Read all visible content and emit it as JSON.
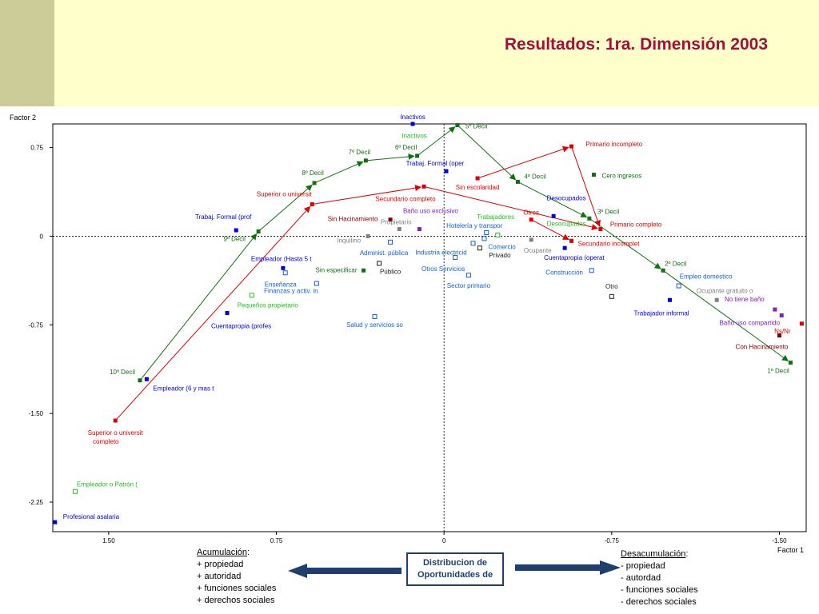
{
  "slide": {
    "title": "Resultados: 1ra. Dimensión 2003",
    "left_note": {
      "heading": "Acumulación",
      "colon": ":",
      "items": [
        "+  propiedad",
        "+  autoridad",
        "+  funciones sociales",
        "+  derechos sociales"
      ]
    },
    "right_note": {
      "heading": "Desacumulación",
      "colon": ":",
      "items": [
        "-  propiedad",
        "-  autordad",
        "-  funciones sociales",
        "-  derechos sociales"
      ]
    },
    "center_box": [
      "Distribucion de",
      "Oportunidades de"
    ]
  },
  "chart_data": {
    "type": "scatter",
    "xlabel": "Factor 1",
    "ylabel": "Factor 2",
    "x_axis_reversed": true,
    "xlim": [
      1.75,
      -1.62
    ],
    "ylim": [
      -2.5,
      0.95
    ],
    "xticks": [
      {
        "v": 1.5,
        "label": "1.50"
      },
      {
        "v": 0.75,
        "label": "0.75"
      },
      {
        "v": 0,
        "label": "0"
      },
      {
        "v": -0.75,
        "label": "-0.75"
      },
      {
        "v": -1.5,
        "label": "-1.50"
      }
    ],
    "yticks": [
      {
        "v": 0.75,
        "label": "0.75"
      },
      {
        "v": 0,
        "label": "0"
      },
      {
        "v": -0.75,
        "label": "-0.75"
      },
      {
        "v": -1.5,
        "label": "-1.50"
      },
      {
        "v": -2.25,
        "label": "-2.25"
      }
    ],
    "reference_lines": {
      "x": 0,
      "y": 0,
      "style": "dotted"
    },
    "colors": {
      "decil": "#107010",
      "educ": "#e00000",
      "trabajo": "#0000e0",
      "sector": "#1060e0",
      "vivienda": "#800000",
      "servicio": "#8020c0",
      "gris": "#808080",
      "negro": "#202020",
      "verde_claro": "#20c020"
    },
    "points": [
      {
        "label": "Inactivos",
        "x": 0.14,
        "y": 0.95,
        "group": "trabajo",
        "marker": "filled",
        "lx": 0,
        "ly": -6,
        "anchor": "middle"
      },
      {
        "label": "Inactivos",
        "x": 0.14,
        "y": 0.86,
        "group": "verde_claro",
        "marker": "none",
        "lx": 2,
        "ly": 4,
        "anchor": "middle"
      },
      {
        "label": "5º Decil",
        "x": -0.06,
        "y": 0.94,
        "group": "decil",
        "marker": "filled",
        "lx": 10,
        "ly": 4,
        "anchor": "start"
      },
      {
        "label": "6º Decil",
        "x": 0.12,
        "y": 0.68,
        "group": "decil",
        "marker": "filled",
        "lx": -14,
        "ly": -8,
        "anchor": "middle"
      },
      {
        "label": "7º Decil",
        "x": 0.35,
        "y": 0.64,
        "group": "decil",
        "marker": "filled",
        "lx": -8,
        "ly": -8,
        "anchor": "middle"
      },
      {
        "label": "8º Decil",
        "x": 0.58,
        "y": 0.45,
        "group": "decil",
        "marker": "filled",
        "lx": -2,
        "ly": -10,
        "anchor": "middle"
      },
      {
        "label": "9º Decil",
        "x": 0.83,
        "y": 0.04,
        "group": "decil",
        "marker": "filled",
        "lx": -30,
        "ly": 12,
        "anchor": "middle"
      },
      {
        "label": "10º Decil",
        "x": 1.36,
        "y": -1.22,
        "group": "decil",
        "marker": "filled",
        "lx": -22,
        "ly": -8,
        "anchor": "middle"
      },
      {
        "label": "4º Decil",
        "x": -0.33,
        "y": 0.46,
        "group": "decil",
        "marker": "filled",
        "lx": 8,
        "ly": -4,
        "anchor": "start"
      },
      {
        "label": "3º Decil",
        "x": -0.65,
        "y": 0.15,
        "group": "decil",
        "marker": "filled",
        "lx": 10,
        "ly": -6,
        "anchor": "start"
      },
      {
        "label": "2º Decil",
        "x": -0.98,
        "y": -0.29,
        "group": "decil",
        "marker": "filled",
        "lx": 2,
        "ly": -6,
        "anchor": "start"
      },
      {
        "label": "1º Decil",
        "x": -1.55,
        "y": -1.07,
        "group": "decil",
        "marker": "filled",
        "lx": -29,
        "ly": 13,
        "anchor": "start"
      },
      {
        "label": "Cero ingresos",
        "x": -0.67,
        "y": 0.52,
        "group": "decil",
        "marker": "filled",
        "lx": 10,
        "ly": 4,
        "anchor": "start"
      },
      {
        "label": "Superior o universit",
        "x": 0.59,
        "y": 0.27,
        "group": "educ",
        "marker": "filled",
        "lx": -35,
        "ly": -10,
        "anchor": "middle"
      },
      {
        "label": "Secundario completo",
        "x": 0.09,
        "y": 0.42,
        "group": "educ",
        "marker": "filled",
        "lx": -23,
        "ly": 18,
        "anchor": "middle"
      },
      {
        "label": "Primario incompleto",
        "x": -0.57,
        "y": 0.76,
        "group": "educ",
        "marker": "filled",
        "lx": 18,
        "ly": 0,
        "anchor": "start"
      },
      {
        "label": "Sin escolaridad",
        "x": -0.15,
        "y": 0.49,
        "group": "educ",
        "marker": "filled",
        "lx": 0,
        "ly": 14,
        "anchor": "middle"
      },
      {
        "label": "Primario completo",
        "x": -0.7,
        "y": 0.06,
        "group": "educ",
        "marker": "filled",
        "lx": 12,
        "ly": -3,
        "anchor": "start"
      },
      {
        "label": "Secundario incomplet",
        "x": -0.57,
        "y": -0.04,
        "group": "educ",
        "marker": "filled",
        "lx": 8,
        "ly": 6,
        "anchor": "start"
      },
      {
        "label": "Otros",
        "x": -0.39,
        "y": 0.14,
        "group": "educ",
        "marker": "filled",
        "lx": 0,
        "ly": -6,
        "anchor": "middle"
      },
      {
        "label": "Superior o universit",
        "x": 1.47,
        "y": -1.56,
        "group": "educ",
        "marker": "filled",
        "lx": 0,
        "ly": 18,
        "anchor": "middle"
      },
      {
        "label": "completo",
        "x": 1.47,
        "y": -1.56,
        "group": "educ",
        "marker": "none",
        "lx": -12,
        "ly": 29,
        "anchor": "middle"
      },
      {
        "label": "Ns/Nr",
        "x": -1.6,
        "y": -0.74,
        "group": "educ",
        "marker": "filled",
        "lx": -24,
        "ly": 12,
        "anchor": "middle"
      },
      {
        "label": "Trabaj. Formal (prof",
        "x": 0.93,
        "y": 0.05,
        "group": "trabajo",
        "marker": "filled",
        "lx": -16,
        "ly": -14,
        "anchor": "middle"
      },
      {
        "label": "Trabaj. Formal (oper",
        "x": -0.01,
        "y": 0.55,
        "group": "trabajo",
        "marker": "filled",
        "lx": -14,
        "ly": -7,
        "anchor": "middle"
      },
      {
        "label": "Empleador (Hasta 5 t",
        "x": 0.72,
        "y": -0.27,
        "group": "trabajo",
        "marker": "filled",
        "lx": -40,
        "ly": -9,
        "anchor": "start"
      },
      {
        "label": "Cuentapropia (profes",
        "x": 0.97,
        "y": -0.65,
        "group": "trabajo",
        "marker": "filled",
        "lx": -20,
        "ly": 19,
        "anchor": "start"
      },
      {
        "label": "Empleador (6 y mas t",
        "x": 1.33,
        "y": -1.21,
        "group": "trabajo",
        "marker": "filled",
        "lx": 8,
        "ly": 14,
        "anchor": "start"
      },
      {
        "label": "Profesional asalaria",
        "x": 1.74,
        "y": -2.42,
        "group": "trabajo",
        "marker": "filled",
        "lx": 10,
        "ly": -4,
        "anchor": "start"
      },
      {
        "label": "Desocupados",
        "x": -0.49,
        "y": 0.17,
        "group": "trabajo",
        "marker": "filled",
        "lx": 16,
        "ly": -20,
        "anchor": "middle"
      },
      {
        "label": "Desocupados",
        "x": -0.49,
        "y": 0.17,
        "group": "verde_claro",
        "marker": "none",
        "lx": 16,
        "ly": 12,
        "anchor": "middle"
      },
      {
        "label": "Cuentapropia (operat",
        "x": -0.54,
        "y": -0.1,
        "group": "trabajo",
        "marker": "filled",
        "lx": -26,
        "ly": 15,
        "anchor": "start"
      },
      {
        "label": "Trabajador informal",
        "x": -1.01,
        "y": -0.54,
        "group": "trabajo",
        "marker": "filled",
        "lx": -45,
        "ly": 19,
        "anchor": "start"
      },
      {
        "label": "Trabajadores",
        "x": -0.24,
        "y": 0.01,
        "group": "verde_claro",
        "marker": "open",
        "lx": -26,
        "ly": -20,
        "anchor": "start"
      },
      {
        "label": "Hotelería y transpor",
        "x": -0.19,
        "y": 0.03,
        "group": "sector",
        "marker": "open",
        "lx": -15,
        "ly": -6,
        "anchor": "middle"
      },
      {
        "label": "Comercio",
        "x": -0.18,
        "y": -0.02,
        "group": "sector",
        "marker": "open",
        "lx": 5,
        "ly": 13,
        "anchor": "start"
      },
      {
        "label": "Industria electricid",
        "x": -0.13,
        "y": -0.06,
        "group": "sector",
        "marker": "open",
        "lx": -40,
        "ly": 14,
        "anchor": "middle"
      },
      {
        "label": "Administ. pública",
        "x": 0.24,
        "y": -0.05,
        "group": "sector",
        "marker": "open",
        "lx": -8,
        "ly": 16,
        "anchor": "middle"
      },
      {
        "label": "Otros Servicios",
        "x": -0.05,
        "y": -0.18,
        "group": "sector",
        "marker": "open",
        "lx": -15,
        "ly": 17,
        "anchor": "middle"
      },
      {
        "label": "Sector primario",
        "x": -0.11,
        "y": -0.33,
        "group": "sector",
        "marker": "open",
        "lx": 0,
        "ly": 16,
        "anchor": "middle"
      },
      {
        "label": "Construcción",
        "x": -0.66,
        "y": -0.29,
        "group": "sector",
        "marker": "open",
        "lx": -34,
        "ly": 5,
        "anchor": "middle"
      },
      {
        "label": "Empleo doméstico",
        "x": -1.05,
        "y": -0.42,
        "group": "sector",
        "marker": "open",
        "lx": 34,
        "ly": -9,
        "anchor": "middle"
      },
      {
        "label": "Enseñanza",
        "x": 0.71,
        "y": -0.31,
        "group": "sector",
        "marker": "open",
        "lx": -6,
        "ly": 17,
        "anchor": "middle"
      },
      {
        "label": "Finanzas y activ. in",
        "x": 0.57,
        "y": -0.4,
        "group": "sector",
        "marker": "open",
        "lx": -32,
        "ly": 12,
        "anchor": "middle"
      },
      {
        "label": "Salud y servicios so",
        "x": 0.31,
        "y": -0.68,
        "group": "sector",
        "marker": "open",
        "lx": 0,
        "ly": 13,
        "anchor": "middle"
      },
      {
        "label": "Pequeños propietario",
        "x": 0.86,
        "y": -0.5,
        "group": "verde_claro",
        "marker": "open",
        "lx": 20,
        "ly": 15,
        "anchor": "middle"
      },
      {
        "label": "Empleador o Patrón (",
        "x": 1.65,
        "y": -2.16,
        "group": "verde_claro",
        "marker": "open",
        "lx": 40,
        "ly": -6,
        "anchor": "middle"
      },
      {
        "label": "Sin Hacinamiento",
        "x": 0.24,
        "y": 0.14,
        "group": "vivienda",
        "marker": "filled",
        "lx": -47,
        "ly": 2,
        "anchor": "middle"
      },
      {
        "label": "Con Hacinamiento",
        "x": -1.5,
        "y": -0.84,
        "group": "vivienda",
        "marker": "filled",
        "lx": -22,
        "ly": 17,
        "anchor": "middle"
      },
      {
        "label": "Baño uso exclusivo",
        "x": 0.11,
        "y": 0.06,
        "group": "servicio",
        "marker": "filled",
        "lx": 14,
        "ly": -20,
        "anchor": "middle"
      },
      {
        "label": "No tiene baño",
        "x": -1.48,
        "y": -0.62,
        "group": "servicio",
        "marker": "filled",
        "lx": -38,
        "ly": -10,
        "anchor": "middle"
      },
      {
        "label": "Baño uso compartido",
        "x": -1.51,
        "y": -0.67,
        "group": "servicio",
        "marker": "filled",
        "lx": -40,
        "ly": 12,
        "anchor": "middle"
      },
      {
        "label": "Propietario",
        "x": 0.2,
        "y": 0.06,
        "group": "gris",
        "marker": "filled",
        "lx": -4,
        "ly": -6,
        "anchor": "middle"
      },
      {
        "label": "Inquilino",
        "x": 0.34,
        "y": 0.0,
        "group": "gris",
        "marker": "filled",
        "lx": -24,
        "ly": 8,
        "anchor": "middle"
      },
      {
        "label": "Ocupante",
        "x": -0.39,
        "y": -0.03,
        "group": "gris",
        "marker": "filled",
        "lx": 8,
        "ly": 16,
        "anchor": "middle"
      },
      {
        "label": "Ocupante gratuito o",
        "x": -1.22,
        "y": -0.54,
        "group": "gris",
        "marker": "filled",
        "lx": 10,
        "ly": -9,
        "anchor": "middle"
      },
      {
        "label": "Privado",
        "x": -0.16,
        "y": -0.1,
        "group": "negro",
        "marker": "open",
        "lx": 25,
        "ly": 12,
        "anchor": "middle"
      },
      {
        "label": "Público",
        "x": 0.29,
        "y": -0.23,
        "group": "negro",
        "marker": "open",
        "lx": 14,
        "ly": 13,
        "anchor": "middle"
      },
      {
        "label": "Otro",
        "x": -0.75,
        "y": -0.51,
        "group": "negro",
        "marker": "open",
        "lx": 0,
        "ly": -10,
        "anchor": "middle"
      },
      {
        "label": "Sin especificar",
        "x": 0.36,
        "y": -0.29,
        "group": "decil",
        "marker": "filled",
        "lx": -34,
        "ly": 2,
        "anchor": "middle"
      }
    ],
    "paths": [
      {
        "name": "deciles",
        "group": "decil",
        "points": [
          [
            1.36,
            -1.22
          ],
          [
            0.83,
            0.04
          ],
          [
            0.58,
            0.45
          ],
          [
            0.35,
            0.64
          ],
          [
            0.12,
            0.68
          ],
          [
            -0.06,
            0.94
          ],
          [
            -0.33,
            0.46
          ],
          [
            -0.65,
            0.15
          ],
          [
            -0.98,
            -0.29
          ],
          [
            -1.55,
            -1.07
          ]
        ]
      },
      {
        "name": "educacion_1",
        "group": "educ",
        "points": [
          [
            1.47,
            -1.56
          ],
          [
            0.59,
            0.27
          ],
          [
            0.09,
            0.42
          ],
          [
            -0.7,
            0.06
          ]
        ]
      },
      {
        "name": "educacion_2",
        "group": "educ",
        "points": [
          [
            -0.15,
            0.49
          ],
          [
            -0.57,
            0.76
          ],
          [
            -0.7,
            0.06
          ]
        ]
      },
      {
        "name": "educacion_3",
        "group": "educ",
        "points": [
          [
            -0.39,
            0.14
          ],
          [
            -0.57,
            -0.04
          ]
        ]
      }
    ]
  }
}
